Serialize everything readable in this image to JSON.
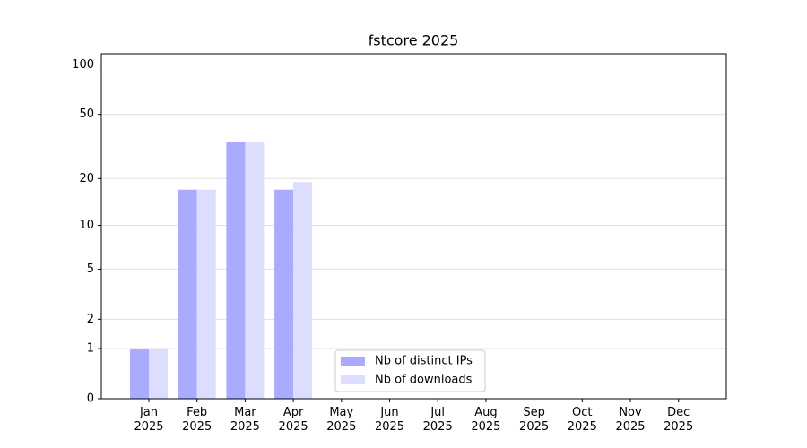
{
  "chart_data": {
    "type": "bar",
    "title": "fstcore 2025",
    "categories": [
      "Jan\n2025",
      "Feb\n2025",
      "Mar\n2025",
      "Apr\n2025",
      "May\n2025",
      "Jun\n2025",
      "Jul\n2025",
      "Aug\n2025",
      "Sep\n2025",
      "Oct\n2025",
      "Nov\n2025",
      "Dec\n2025"
    ],
    "series": [
      {
        "name": "Nb of distinct IPs",
        "color": "#aaaaff",
        "values": [
          1,
          17,
          34,
          17,
          null,
          null,
          null,
          null,
          null,
          null,
          null,
          null
        ]
      },
      {
        "name": "Nb of downloads",
        "color": "#ddddff",
        "values": [
          1,
          17,
          34,
          19,
          null,
          null,
          null,
          null,
          null,
          null,
          null,
          null
        ]
      }
    ],
    "yscale": "log1p",
    "ylim": [
      0,
      117
    ],
    "yticks": [
      0,
      1,
      2,
      5,
      10,
      20,
      50,
      100
    ],
    "grid": true,
    "legend": "lower center"
  }
}
